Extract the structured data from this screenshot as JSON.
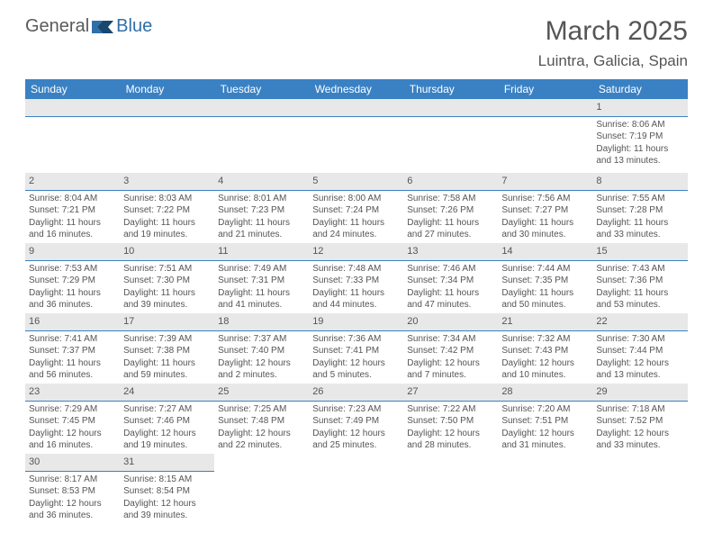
{
  "brand": {
    "general": "General",
    "blue": "Blue"
  },
  "title": "March 2025",
  "location": "Luintra, Galicia, Spain",
  "colors": {
    "header_bg": "#3a81c4",
    "dayhead_bg": "#e8e8e8",
    "text": "#555555"
  },
  "weekdays": [
    "Sunday",
    "Monday",
    "Tuesday",
    "Wednesday",
    "Thursday",
    "Friday",
    "Saturday"
  ],
  "weeks": [
    [
      null,
      null,
      null,
      null,
      null,
      null,
      {
        "n": "1",
        "sr": "Sunrise: 8:06 AM",
        "ss": "Sunset: 7:19 PM",
        "dl": "Daylight: 11 hours and 13 minutes."
      }
    ],
    [
      {
        "n": "2",
        "sr": "Sunrise: 8:04 AM",
        "ss": "Sunset: 7:21 PM",
        "dl": "Daylight: 11 hours and 16 minutes."
      },
      {
        "n": "3",
        "sr": "Sunrise: 8:03 AM",
        "ss": "Sunset: 7:22 PM",
        "dl": "Daylight: 11 hours and 19 minutes."
      },
      {
        "n": "4",
        "sr": "Sunrise: 8:01 AM",
        "ss": "Sunset: 7:23 PM",
        "dl": "Daylight: 11 hours and 21 minutes."
      },
      {
        "n": "5",
        "sr": "Sunrise: 8:00 AM",
        "ss": "Sunset: 7:24 PM",
        "dl": "Daylight: 11 hours and 24 minutes."
      },
      {
        "n": "6",
        "sr": "Sunrise: 7:58 AM",
        "ss": "Sunset: 7:26 PM",
        "dl": "Daylight: 11 hours and 27 minutes."
      },
      {
        "n": "7",
        "sr": "Sunrise: 7:56 AM",
        "ss": "Sunset: 7:27 PM",
        "dl": "Daylight: 11 hours and 30 minutes."
      },
      {
        "n": "8",
        "sr": "Sunrise: 7:55 AM",
        "ss": "Sunset: 7:28 PM",
        "dl": "Daylight: 11 hours and 33 minutes."
      }
    ],
    [
      {
        "n": "9",
        "sr": "Sunrise: 7:53 AM",
        "ss": "Sunset: 7:29 PM",
        "dl": "Daylight: 11 hours and 36 minutes."
      },
      {
        "n": "10",
        "sr": "Sunrise: 7:51 AM",
        "ss": "Sunset: 7:30 PM",
        "dl": "Daylight: 11 hours and 39 minutes."
      },
      {
        "n": "11",
        "sr": "Sunrise: 7:49 AM",
        "ss": "Sunset: 7:31 PM",
        "dl": "Daylight: 11 hours and 41 minutes."
      },
      {
        "n": "12",
        "sr": "Sunrise: 7:48 AM",
        "ss": "Sunset: 7:33 PM",
        "dl": "Daylight: 11 hours and 44 minutes."
      },
      {
        "n": "13",
        "sr": "Sunrise: 7:46 AM",
        "ss": "Sunset: 7:34 PM",
        "dl": "Daylight: 11 hours and 47 minutes."
      },
      {
        "n": "14",
        "sr": "Sunrise: 7:44 AM",
        "ss": "Sunset: 7:35 PM",
        "dl": "Daylight: 11 hours and 50 minutes."
      },
      {
        "n": "15",
        "sr": "Sunrise: 7:43 AM",
        "ss": "Sunset: 7:36 PM",
        "dl": "Daylight: 11 hours and 53 minutes."
      }
    ],
    [
      {
        "n": "16",
        "sr": "Sunrise: 7:41 AM",
        "ss": "Sunset: 7:37 PM",
        "dl": "Daylight: 11 hours and 56 minutes."
      },
      {
        "n": "17",
        "sr": "Sunrise: 7:39 AM",
        "ss": "Sunset: 7:38 PM",
        "dl": "Daylight: 11 hours and 59 minutes."
      },
      {
        "n": "18",
        "sr": "Sunrise: 7:37 AM",
        "ss": "Sunset: 7:40 PM",
        "dl": "Daylight: 12 hours and 2 minutes."
      },
      {
        "n": "19",
        "sr": "Sunrise: 7:36 AM",
        "ss": "Sunset: 7:41 PM",
        "dl": "Daylight: 12 hours and 5 minutes."
      },
      {
        "n": "20",
        "sr": "Sunrise: 7:34 AM",
        "ss": "Sunset: 7:42 PM",
        "dl": "Daylight: 12 hours and 7 minutes."
      },
      {
        "n": "21",
        "sr": "Sunrise: 7:32 AM",
        "ss": "Sunset: 7:43 PM",
        "dl": "Daylight: 12 hours and 10 minutes."
      },
      {
        "n": "22",
        "sr": "Sunrise: 7:30 AM",
        "ss": "Sunset: 7:44 PM",
        "dl": "Daylight: 12 hours and 13 minutes."
      }
    ],
    [
      {
        "n": "23",
        "sr": "Sunrise: 7:29 AM",
        "ss": "Sunset: 7:45 PM",
        "dl": "Daylight: 12 hours and 16 minutes."
      },
      {
        "n": "24",
        "sr": "Sunrise: 7:27 AM",
        "ss": "Sunset: 7:46 PM",
        "dl": "Daylight: 12 hours and 19 minutes."
      },
      {
        "n": "25",
        "sr": "Sunrise: 7:25 AM",
        "ss": "Sunset: 7:48 PM",
        "dl": "Daylight: 12 hours and 22 minutes."
      },
      {
        "n": "26",
        "sr": "Sunrise: 7:23 AM",
        "ss": "Sunset: 7:49 PM",
        "dl": "Daylight: 12 hours and 25 minutes."
      },
      {
        "n": "27",
        "sr": "Sunrise: 7:22 AM",
        "ss": "Sunset: 7:50 PM",
        "dl": "Daylight: 12 hours and 28 minutes."
      },
      {
        "n": "28",
        "sr": "Sunrise: 7:20 AM",
        "ss": "Sunset: 7:51 PM",
        "dl": "Daylight: 12 hours and 31 minutes."
      },
      {
        "n": "29",
        "sr": "Sunrise: 7:18 AM",
        "ss": "Sunset: 7:52 PM",
        "dl": "Daylight: 12 hours and 33 minutes."
      }
    ],
    [
      {
        "n": "30",
        "sr": "Sunrise: 8:17 AM",
        "ss": "Sunset: 8:53 PM",
        "dl": "Daylight: 12 hours and 36 minutes."
      },
      {
        "n": "31",
        "sr": "Sunrise: 8:15 AM",
        "ss": "Sunset: 8:54 PM",
        "dl": "Daylight: 12 hours and 39 minutes."
      },
      null,
      null,
      null,
      null,
      null
    ]
  ]
}
